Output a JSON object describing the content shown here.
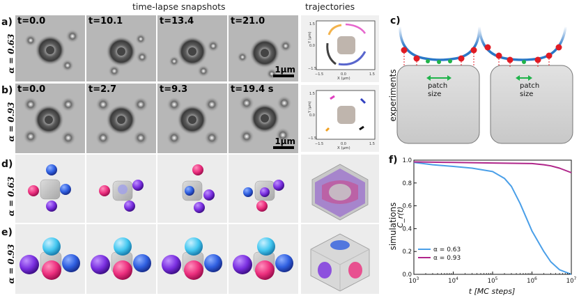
{
  "headers": {
    "snapshots": "time-lapse snapshots",
    "trajectories": "trajectories"
  },
  "panels": {
    "a": "a)",
    "b": "b)",
    "c": "c)",
    "d": "d)",
    "e": "e)",
    "f": "f)"
  },
  "alpha_labels": {
    "a": "α = 0.63",
    "b": "α = 0.93",
    "d": "α = 0.63",
    "e": "α = 0.93"
  },
  "row_a_times": [
    "t=0.0",
    "t=10.1",
    "t=13.4",
    "t=21.0"
  ],
  "row_b_times": [
    "t=0.0",
    "t=2.7",
    "t=9.3",
    "t=19.4 s"
  ],
  "scale_bar_label": "1μm",
  "trajectory_axes": {
    "xlabel": "X (μm)",
    "ylabel": "Y (μm)",
    "xticks": [
      "−1.5",
      "0.0",
      "1.5"
    ],
    "yticks": [
      "1.5",
      "0.0",
      "−1.5"
    ]
  },
  "side_labels": {
    "experiments": "experiments",
    "simulations": "simulations"
  },
  "patch_label": "patch\nsize",
  "patch_label_lines": [
    "patch",
    "size"
  ],
  "colors": {
    "particle_pink": "#ec2f7e",
    "particle_blue": "#2f5fe0",
    "particle_cyan": "#45c8f0",
    "particle_purple": "#7a2fe0",
    "patch_green": "#1fb34a",
    "bead_red": "#e01b24",
    "chain_blue": "#2b78c8",
    "curve_063": "#4a9fe8",
    "curve_093": "#b0258a"
  },
  "chart_data": {
    "type": "line",
    "xlabel": "t [MC steps]",
    "ylabel": "C_r(t)",
    "xscale": "log",
    "xlim": [
      1000,
      10000000
    ],
    "ylim": [
      0.0,
      1.0
    ],
    "xticks": [
      "10^3",
      "10^4",
      "10^5",
      "10^6",
      "10^7"
    ],
    "yticks": [
      "0.0",
      "0.2",
      "0.4",
      "0.6",
      "0.8",
      "1.0"
    ],
    "legend_position": "bottom-left",
    "series": [
      {
        "name": "α = 0.63",
        "color": "#4a9fe8",
        "x": [
          1000,
          3000,
          10000,
          30000,
          100000,
          200000,
          300000,
          500000,
          1000000,
          2000000,
          3000000,
          5000000,
          10000000
        ],
        "y": [
          0.98,
          0.96,
          0.945,
          0.93,
          0.9,
          0.84,
          0.77,
          0.62,
          0.38,
          0.2,
          0.11,
          0.04,
          0.0
        ]
      },
      {
        "name": "α = 0.93",
        "color": "#b0258a",
        "x": [
          1000,
          10000,
          100000,
          1000000,
          2000000,
          3000000,
          5000000,
          10000000
        ],
        "y": [
          0.985,
          0.98,
          0.975,
          0.97,
          0.96,
          0.95,
          0.93,
          0.89
        ]
      }
    ]
  }
}
